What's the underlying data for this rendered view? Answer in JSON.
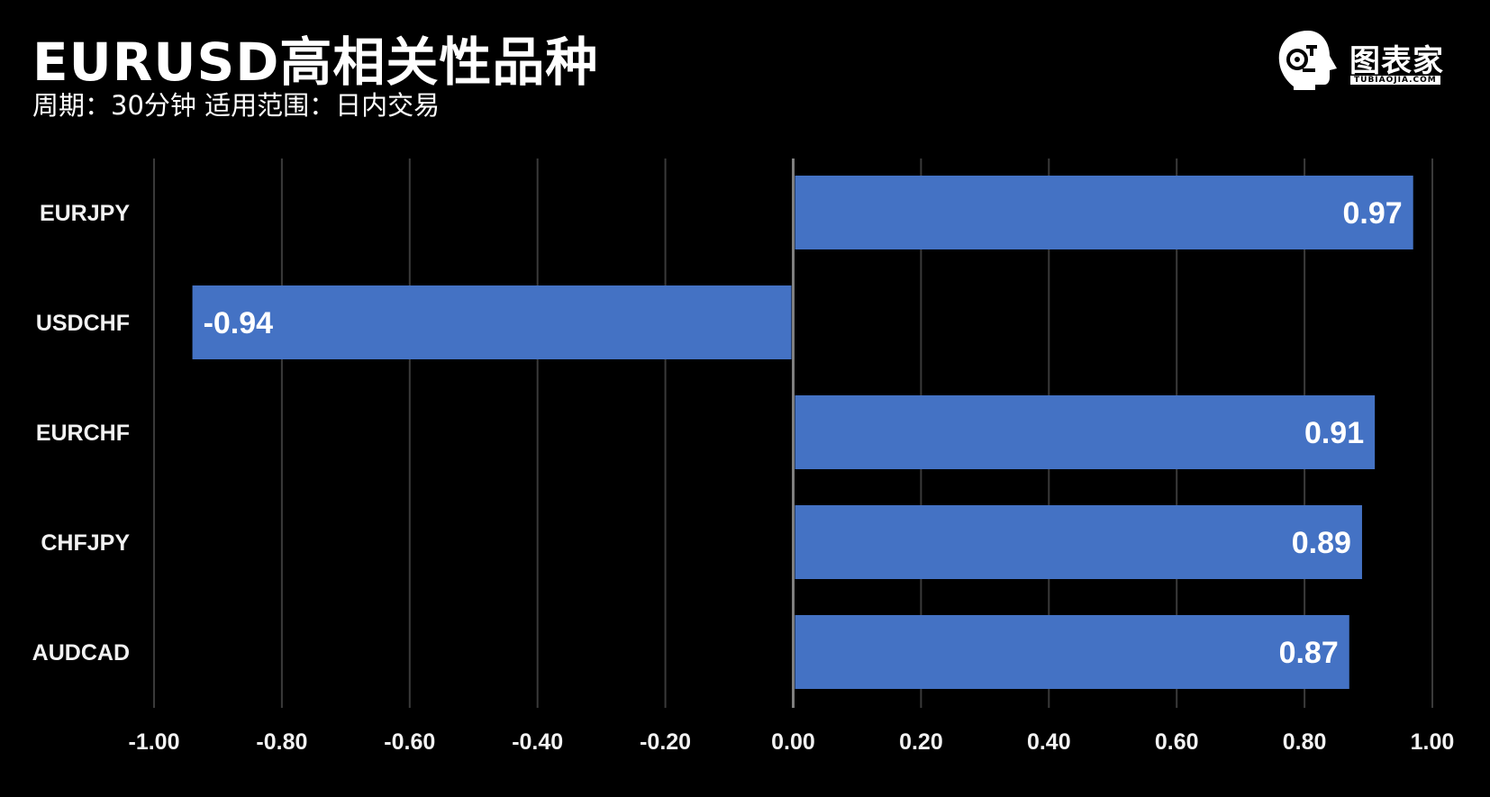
{
  "title": "EURUSD高相关性品种",
  "subtitle": "周期：30分钟  适用范围：日内交易",
  "logo": {
    "icon": "robot-head-icon",
    "text": "图表家",
    "subtext": "TUBIAOJIA.COM"
  },
  "colors": {
    "background": "#000000",
    "bar": "#4472c4",
    "grid": "#3a3a3a",
    "axis": "#7f7f7f",
    "text": "#f2f2f2"
  },
  "chart_data": {
    "type": "bar",
    "orientation": "horizontal",
    "categories": [
      "EURJPY",
      "USDCHF",
      "EURCHF",
      "CHFJPY",
      "AUDCAD"
    ],
    "values": [
      0.97,
      -0.94,
      0.91,
      0.89,
      0.87
    ],
    "value_labels": [
      "0.97",
      "-0.94",
      "0.91",
      "0.89",
      "0.87"
    ],
    "xlim": [
      -1.0,
      1.0
    ],
    "xticks": [
      -1.0,
      -0.8,
      -0.6,
      -0.4,
      -0.2,
      0.0,
      0.2,
      0.4,
      0.6,
      0.8,
      1.0
    ],
    "xtick_labels": [
      "-1.00",
      "-0.80",
      "-0.60",
      "-0.40",
      "-0.20",
      "0.00",
      "0.20",
      "0.40",
      "0.60",
      "0.80",
      "1.00"
    ],
    "grid": "vertical",
    "legend": "none"
  }
}
